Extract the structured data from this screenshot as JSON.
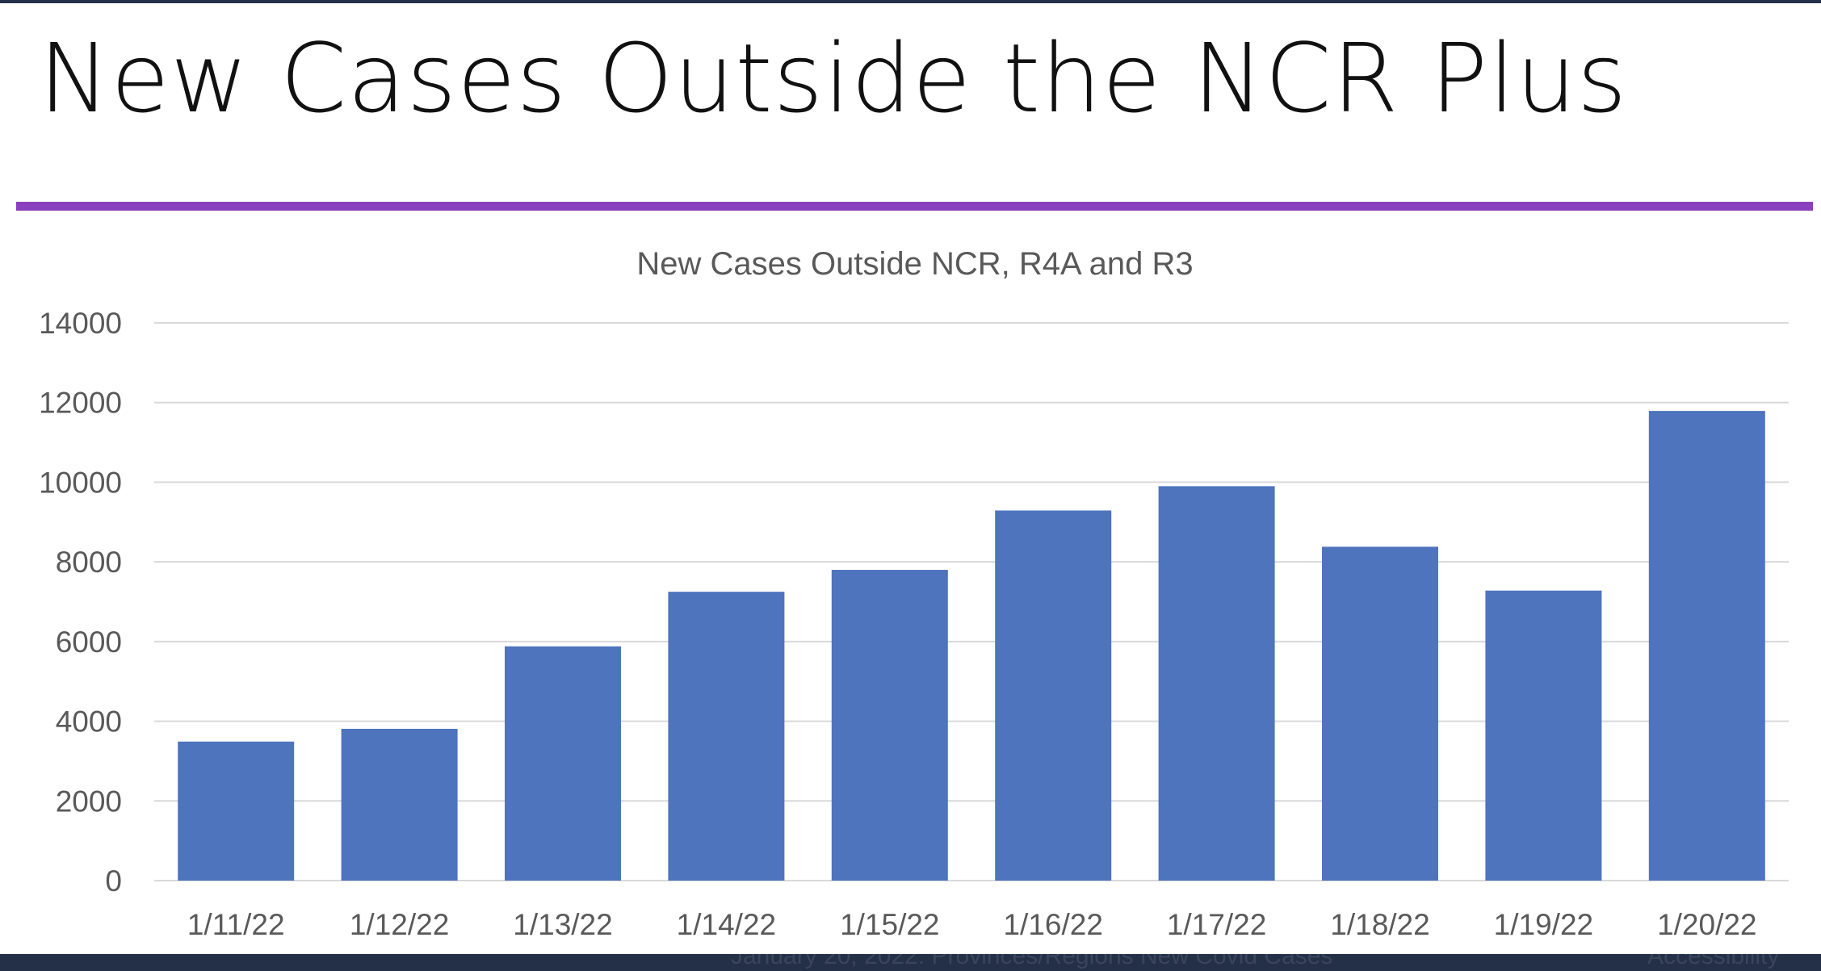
{
  "slide": {
    "title": "New Cases Outside the NCR Plus",
    "accent_color": "#8a3fbf",
    "footer_text": "January 20, 2022: Provinces/Regions New Covid Cases",
    "footer_right": "Accessibility"
  },
  "chart_data": {
    "type": "bar",
    "title": "New Cases Outside NCR, R4A and R3",
    "xlabel": "",
    "ylabel": "",
    "categories": [
      "1/11/22",
      "1/12/22",
      "1/13/22",
      "1/14/22",
      "1/15/22",
      "1/16/22",
      "1/17/22",
      "1/18/22",
      "1/19/22",
      "1/20/22"
    ],
    "values": [
      3490,
      3810,
      5880,
      7250,
      7800,
      9290,
      9900,
      8380,
      7280,
      11790
    ],
    "ylim": [
      0,
      14000
    ],
    "yticks": [
      0,
      2000,
      4000,
      6000,
      8000,
      10000,
      12000,
      14000
    ],
    "grid": true,
    "legend": "none",
    "bar_color": "#4e74bd"
  }
}
